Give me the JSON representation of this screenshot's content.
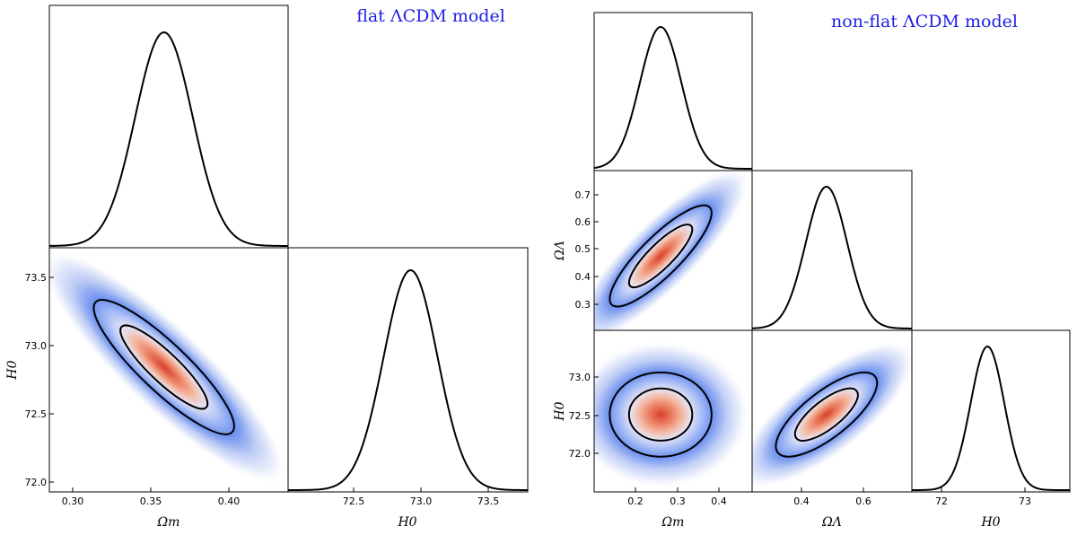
{
  "titles": {
    "flat": "flat ΛCDM model",
    "nonflat": "non-flat ΛCDM model"
  },
  "colors": {
    "title": "#1f1fe6",
    "contour": "#000000",
    "high_density": "#d8402c",
    "low_density": "#5a82f0"
  },
  "chart_data": [
    {
      "type": "corner",
      "title": "flat ΛCDM model",
      "parameters": [
        {
          "name": "Omega_m",
          "label": "Ωm",
          "range": [
            0.29,
            0.44
          ],
          "ticks": [
            0.3,
            0.35,
            0.4
          ],
          "tick_labels": [
            "0.30",
            "0.35",
            "0.40"
          ]
        },
        {
          "name": "H0",
          "label": "H0",
          "range": [
            71.92,
            73.7
          ],
          "ticks": [
            72.0,
            72.5,
            73.0,
            73.5
          ],
          "tick_labels": [
            "72.0",
            "72.5",
            "73.0",
            "73.5"
          ]
        }
      ],
      "marginals": [
        {
          "param": "Omega_m",
          "mean": 0.362,
          "sigma": 0.018
        },
        {
          "param": "H0",
          "mean": 72.83,
          "sigma": 0.2
        }
      ],
      "joint": [
        {
          "x": "Omega_m",
          "y": "H0",
          "correlation": -0.88
        }
      ],
      "contour_levels": [
        "68%",
        "95%"
      ]
    },
    {
      "type": "corner",
      "title": "non-flat ΛCDM model",
      "parameters": [
        {
          "name": "Omega_m",
          "label": "Ωm",
          "range": [
            0.1,
            0.48
          ],
          "ticks": [
            0.2,
            0.3,
            0.4
          ],
          "tick_labels": [
            "0.2",
            "0.3",
            "0.4"
          ]
        },
        {
          "name": "Omega_L",
          "label": "ΩΛ",
          "range": [
            0.22,
            0.8
          ],
          "ticks": [
            0.3,
            0.4,
            0.5,
            0.6,
            0.7
          ],
          "tick_labels": [
            "0.3",
            "0.4",
            "0.5",
            "0.6",
            "0.7"
          ],
          "bottom_ticks": [
            0.4,
            0.6
          ],
          "bottom_tick_labels": [
            "0.4",
            "0.6"
          ]
        },
        {
          "name": "H0",
          "label": "H0",
          "range": [
            71.62,
            73.5
          ],
          "ticks": [
            72.0,
            72.5,
            73.0
          ],
          "tick_labels": [
            "72.0",
            "72.5",
            "73.0"
          ],
          "bottom_ticks": [
            72.0,
            73.0
          ],
          "bottom_tick_labels": [
            "72",
            "73"
          ]
        }
      ],
      "marginals": [
        {
          "param": "Omega_m",
          "mean": 0.26,
          "sigma": 0.05
        },
        {
          "param": "Omega_L",
          "mean": 0.49,
          "sigma": 0.075
        },
        {
          "param": "H0",
          "mean": 72.52,
          "sigma": 0.2
        }
      ],
      "joint": [
        {
          "x": "Omega_m",
          "y": "Omega_L",
          "correlation": 0.85
        },
        {
          "x": "Omega_m",
          "y": "H0",
          "correlation": 0.0
        },
        {
          "x": "Omega_L",
          "y": "H0",
          "correlation": 0.75
        }
      ],
      "contour_levels": [
        "68%",
        "95%"
      ]
    }
  ]
}
